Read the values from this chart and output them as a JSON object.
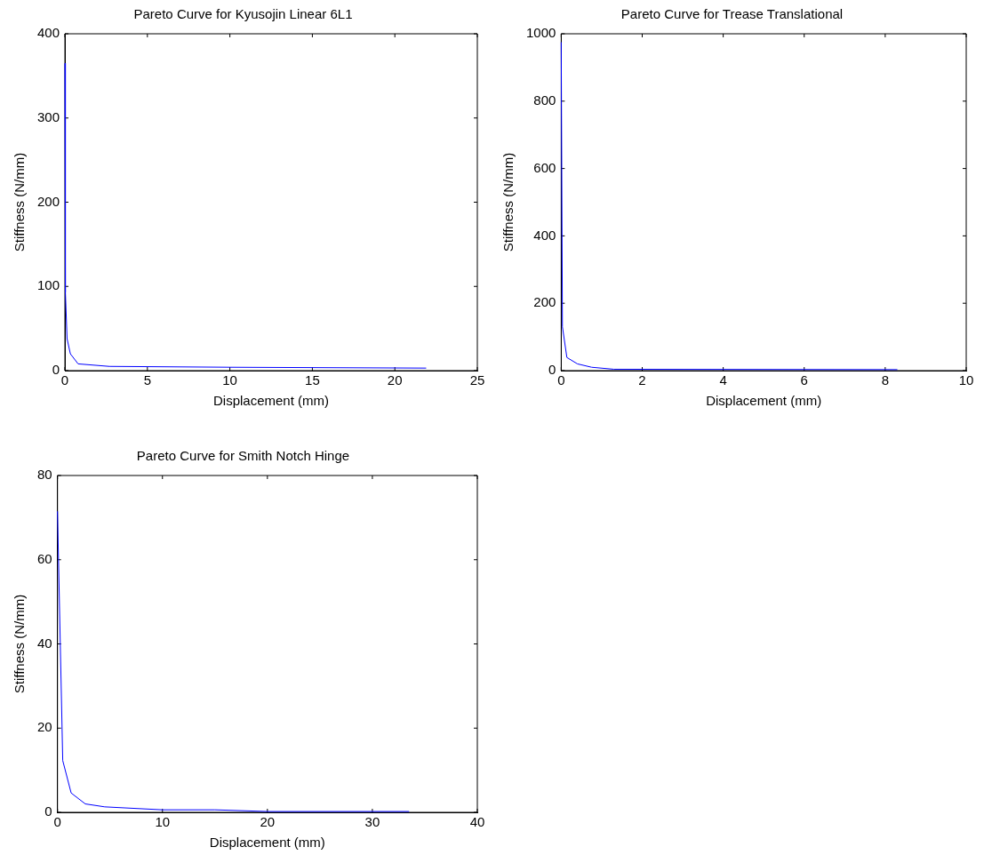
{
  "chart_data": [
    {
      "type": "line",
      "title": "Pareto Curve for Kyusojin Linear 6L1",
      "xlabel": "Displacement (mm)",
      "ylabel": "Stiffness (N/mm)",
      "color": "#0000ff",
      "marker": "none",
      "x": [
        0,
        0.03,
        0.13,
        0.33,
        0.8,
        2.7,
        10,
        21.9
      ],
      "values": [
        365,
        93,
        38,
        20,
        8,
        5,
        4,
        3
      ],
      "xlim": [
        0,
        25
      ],
      "ylim": [
        0,
        400
      ],
      "xticks": [
        0,
        5,
        10,
        15,
        20,
        25
      ],
      "yticks": [
        0,
        100,
        200,
        300,
        400
      ]
    },
    {
      "type": "line",
      "title": "Pareto Curve for Trease Translational",
      "xlabel": "Displacement (mm)",
      "ylabel": "Stiffness (N/mm)",
      "color": "#0000ff",
      "marker": "none",
      "x": [
        0,
        0.03,
        0.14,
        0.4,
        0.75,
        1.3,
        8.3
      ],
      "values": [
        975,
        130,
        39,
        20,
        10,
        4,
        3
      ],
      "xlim": [
        0,
        10
      ],
      "ylim": [
        0,
        1000
      ],
      "xticks": [
        0,
        2,
        4,
        6,
        8,
        10
      ],
      "yticks": [
        0,
        200,
        400,
        600,
        800,
        1000
      ]
    },
    {
      "type": "line",
      "title": "Pareto Curve for Smith Notch Hinge",
      "xlabel": "Displacement (mm)",
      "ylabel": "Stiffness (N/mm)",
      "color": "#0000ff",
      "marker": "none",
      "x": [
        0,
        0.5,
        1.3,
        2.65,
        4.5,
        10,
        15,
        20,
        33.5
      ],
      "values": [
        71.5,
        12.3,
        4.6,
        2,
        1.3,
        0.6,
        0.6,
        0.2,
        0.2
      ],
      "xlim": [
        0,
        40
      ],
      "ylim": [
        0,
        80
      ],
      "xticks": [
        0,
        10,
        20,
        30,
        40
      ],
      "yticks": [
        0,
        20,
        40,
        60,
        80
      ]
    }
  ]
}
